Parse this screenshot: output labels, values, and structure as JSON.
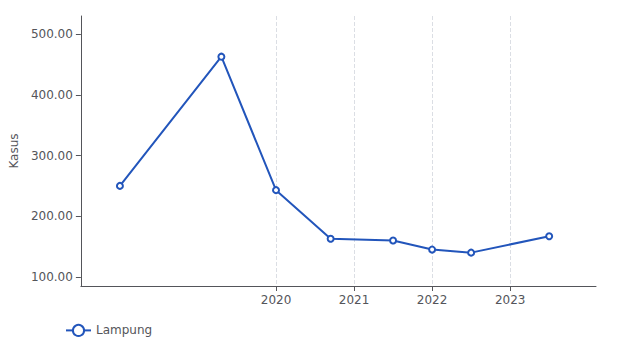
{
  "chart_data": {
    "type": "line",
    "ylabel": "Kasus",
    "x": [
      2018.0,
      2019.3,
      2020.0,
      2020.7,
      2021.5,
      2022.0,
      2022.5,
      2023.5
    ],
    "series": [
      {
        "name": "Lampung",
        "color": "#2255bb",
        "values": [
          250,
          463,
          243,
          163,
          160,
          145,
          140,
          167
        ]
      }
    ],
    "xlim": [
      2017.5,
      2024.1
    ],
    "xticks": [
      2020,
      2021,
      2022,
      2023
    ],
    "ylim": [
      85,
      530
    ],
    "yticks": [
      {
        "value": 100,
        "label": "100.00"
      },
      {
        "value": 200,
        "label": "200.00"
      },
      {
        "value": 300,
        "label": "300.00"
      },
      {
        "value": 400,
        "label": "400.00"
      },
      {
        "value": 500,
        "label": "500.00"
      }
    ],
    "grid": "x",
    "legend": "lower left"
  }
}
